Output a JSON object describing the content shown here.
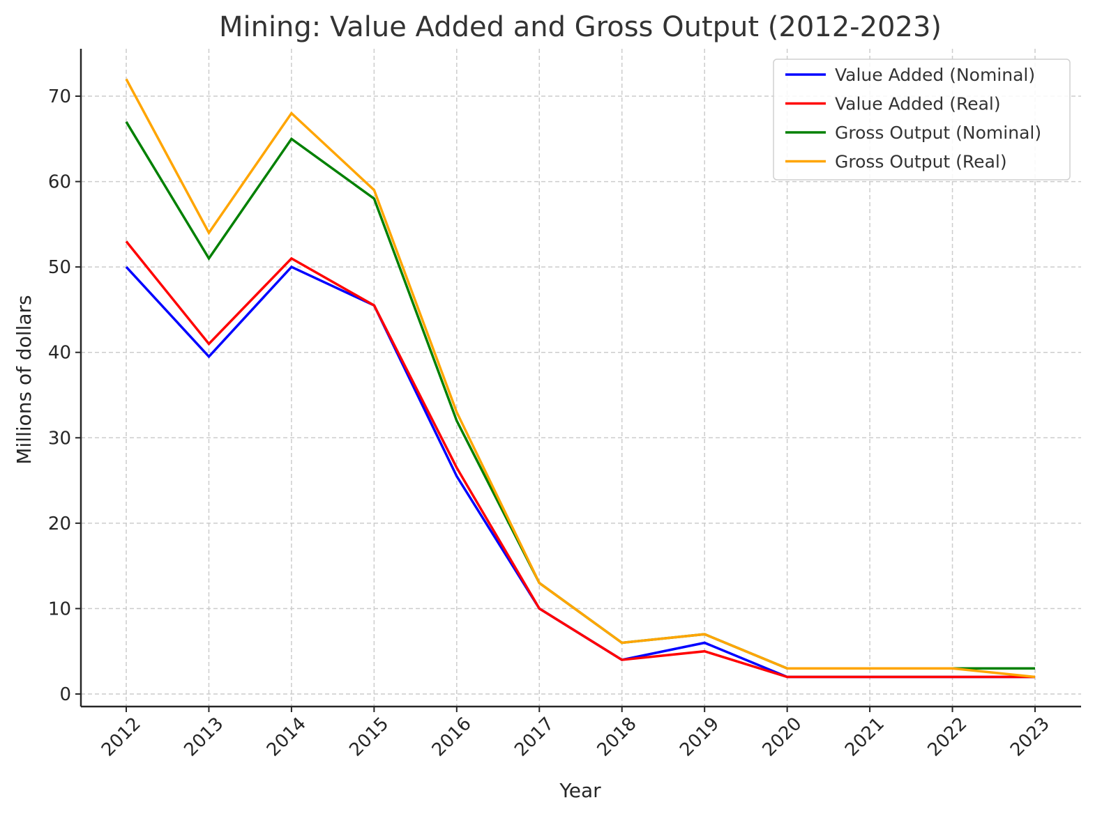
{
  "chart_data": {
    "type": "line",
    "title": "Mining: Value Added and Gross Output (2012-2023)",
    "xlabel": "Year",
    "ylabel": "Millions of dollars",
    "categories": [
      "2012",
      "2013",
      "2014",
      "2015",
      "2016",
      "2017",
      "2018",
      "2019",
      "2020",
      "2021",
      "2022",
      "2023"
    ],
    "ylim": [
      -1.5,
      75.5
    ],
    "yticks": [
      0,
      10,
      20,
      30,
      40,
      50,
      60,
      70
    ],
    "grid": true,
    "legend_position": "top-right",
    "series": [
      {
        "name": "Value Added (Nominal)",
        "color": "#0000ff",
        "values": [
          50,
          39.5,
          50,
          45.5,
          25.5,
          10,
          4,
          6,
          2,
          2,
          2,
          2
        ]
      },
      {
        "name": "Value Added (Real)",
        "color": "#ff0000",
        "values": [
          53,
          41,
          51,
          45.5,
          26.5,
          10,
          4,
          5,
          2,
          2,
          2,
          2
        ]
      },
      {
        "name": "Gross Output (Nominal)",
        "color": "#008000",
        "values": [
          67,
          51,
          65,
          58,
          32,
          13,
          6,
          7,
          3,
          3,
          3,
          3
        ]
      },
      {
        "name": "Gross Output (Real)",
        "color": "#ffa500",
        "values": [
          72,
          54,
          68,
          59,
          33,
          13,
          6,
          7,
          3,
          3,
          3,
          2
        ]
      }
    ]
  }
}
